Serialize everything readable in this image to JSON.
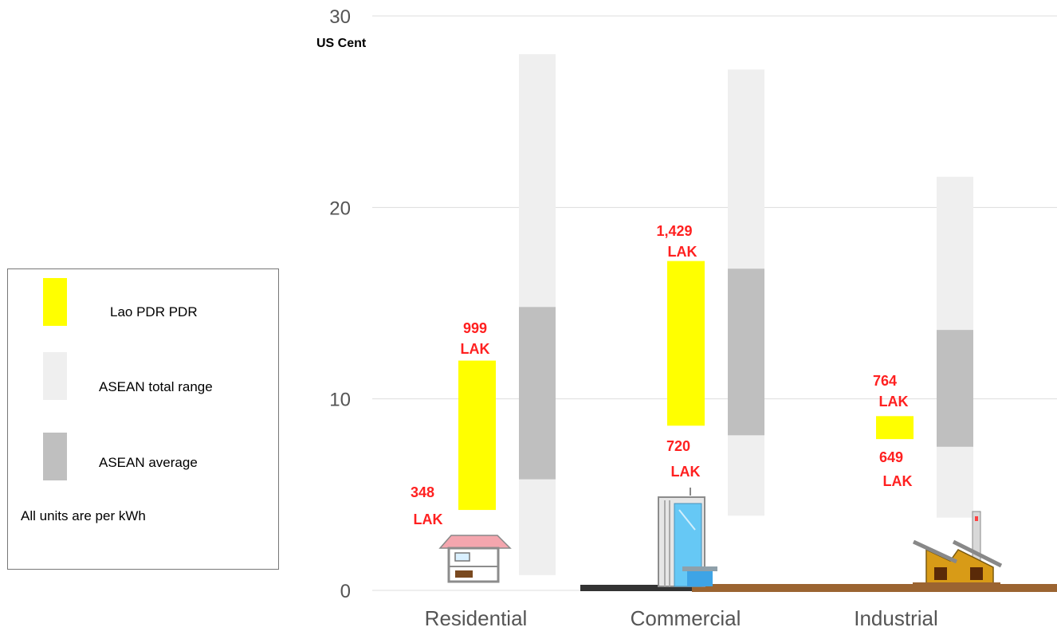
{
  "chart_data": {
    "type": "bar",
    "ylabel": "US Cent",
    "ylim": [
      0,
      30
    ],
    "yticks": [
      0,
      10,
      20,
      30
    ],
    "grid": true,
    "categories": [
      "Residential",
      "Commercial",
      "Industrial"
    ],
    "series": [
      {
        "name": "Lao PDR PDR",
        "color": "#ffff00",
        "ranges": [
          [
            4.2,
            12.0
          ],
          [
            8.6,
            17.2
          ],
          [
            7.9,
            9.1
          ]
        ],
        "low_labels": [
          [
            "348",
            "LAK"
          ],
          [
            "720",
            "LAK"
          ],
          [
            "649",
            "LAK"
          ]
        ],
        "high_labels": [
          [
            "999",
            "LAK"
          ],
          [
            "1,429",
            "LAK"
          ],
          [
            "764",
            "LAK"
          ]
        ]
      },
      {
        "name": "ASEAN total range",
        "color": "#efefef",
        "ranges": [
          [
            0.8,
            28.0
          ],
          [
            3.9,
            27.2
          ],
          [
            3.8,
            21.6
          ]
        ]
      },
      {
        "name": "ASEAN average",
        "color": "#bfbfbf",
        "ranges": [
          [
            5.8,
            14.8
          ],
          [
            8.1,
            16.8
          ],
          [
            7.5,
            13.6
          ]
        ]
      }
    ],
    "label_color": "#ff2020",
    "legend_position": "left",
    "note": "All units are per kWh"
  },
  "icons": [
    "house-icon",
    "office-building-icon",
    "factory-icon"
  ]
}
